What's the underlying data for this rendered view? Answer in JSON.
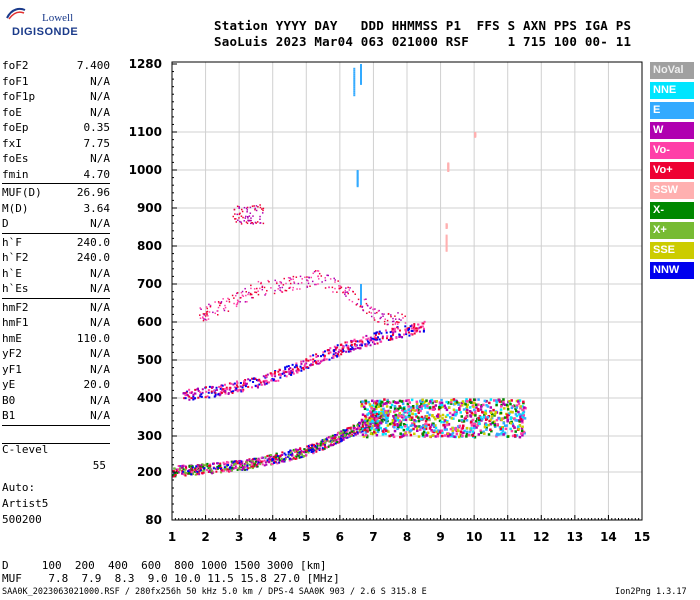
{
  "logo": {
    "line1": "Lowell",
    "line2": "DIGISONDE"
  },
  "header": {
    "line1": "Station YYYY DAY   DDD HHMMSS P1  FFS S AXN PPS IGA PS",
    "line2": "SaoLuis 2023 Mar04 063 021000 RSF     1 715 100 00- 11"
  },
  "params_group1": [
    {
      "name": "foF2",
      "value": "7.400"
    },
    {
      "name": "foF1",
      "value": "N/A"
    },
    {
      "name": "foF1p",
      "value": "N/A"
    },
    {
      "name": "foE",
      "value": "N/A"
    },
    {
      "name": "foEp",
      "value": "0.35"
    },
    {
      "name": "fxI",
      "value": "7.75"
    },
    {
      "name": "foEs",
      "value": "N/A"
    },
    {
      "name": "fmin",
      "value": "4.70"
    }
  ],
  "params_group2": [
    {
      "name": "MUF(D)",
      "value": "26.96"
    },
    {
      "name": "M(D)",
      "value": "3.64"
    },
    {
      "name": "D",
      "value": "N/A"
    }
  ],
  "params_group3": [
    {
      "name": "h`F",
      "value": "240.0"
    },
    {
      "name": "h`F2",
      "value": "240.0"
    },
    {
      "name": "h`E",
      "value": "N/A"
    },
    {
      "name": "h`Es",
      "value": "N/A"
    }
  ],
  "params_group4": [
    {
      "name": "hmF2",
      "value": "N/A"
    },
    {
      "name": "hmF1",
      "value": "N/A"
    },
    {
      "name": "hmE",
      "value": "110.0"
    },
    {
      "name": "yF2",
      "value": "N/A"
    },
    {
      "name": "yF1",
      "value": "N/A"
    },
    {
      "name": "yE",
      "value": "20.0"
    },
    {
      "name": "B0",
      "value": "N/A"
    },
    {
      "name": "B1",
      "value": "N/A"
    }
  ],
  "c_level": {
    "name": "C-level",
    "value": "55"
  },
  "notes": {
    "line1": "Auto:",
    "line2": "Artist5",
    "line3": "500200"
  },
  "legend": [
    {
      "label": "NoVal",
      "color": "#a0a0a0"
    },
    {
      "label": "NNE",
      "color": "#00e5ff"
    },
    {
      "label": "E",
      "color": "#33aaff"
    },
    {
      "label": "W",
      "color": "#b000b0"
    },
    {
      "label": "Vo-",
      "color": "#ff3fa8"
    },
    {
      "label": "Vo+",
      "color": "#ee0033"
    },
    {
      "label": "SSW",
      "color": "#ffb0b0"
    },
    {
      "label": "X-",
      "color": "#008800"
    },
    {
      "label": "X+",
      "color": "#77bb33"
    },
    {
      "label": "SSE",
      "color": "#cccc00"
    },
    {
      "label": "NNW",
      "color": "#0000ee"
    }
  ],
  "footer": {
    "d_line": "D     100  200  400  600  800 1000 1500 3000 [km]",
    "muf_line": "MUF    7.8  7.9  8.3  9.0 10.0 11.5 15.8 27.0 [MHz]",
    "info_line": "SAA0K_2023063021000.RSF / 280fx256h 50 kHz 5.0 km / DPS-4 SAA0K 903 / 2.6 S 315.8 E",
    "version": "Ion2Png 1.3.17"
  },
  "chart_data": {
    "type": "scatter",
    "title": "",
    "xlabel": "",
    "ylabel": "",
    "xlim": [
      1,
      15
    ],
    "ylim": [
      80,
      1280
    ],
    "x_ticks": [
      1,
      2,
      3,
      4,
      5,
      6,
      7,
      8,
      9,
      10,
      11,
      12,
      13,
      14,
      15
    ],
    "y_ticks": [
      80,
      200,
      300,
      400,
      500,
      600,
      700,
      800,
      900,
      1000,
      1100,
      1280
    ],
    "grid": true,
    "traces": [
      {
        "name": "O-trace F layer",
        "x_from": 1.0,
        "x_to": 7.4,
        "y": [
          205,
          210,
          215,
          222,
          235,
          250,
          270,
          300,
          330,
          360
        ]
      },
      {
        "name": "second hop",
        "x_from": 1.3,
        "x_to": 8.5,
        "y": [
          410,
          420,
          440,
          470,
          510,
          545,
          570,
          590
        ]
      },
      {
        "name": "third hop",
        "x_from": 1.8,
        "x_to": 8.0,
        "y": [
          620,
          650,
          690,
          700,
          720,
          680,
          620,
          600
        ]
      },
      {
        "name": "spread F",
        "x_from": 6.6,
        "x_to": 11.5,
        "y": [
          300,
          400
        ]
      }
    ]
  }
}
